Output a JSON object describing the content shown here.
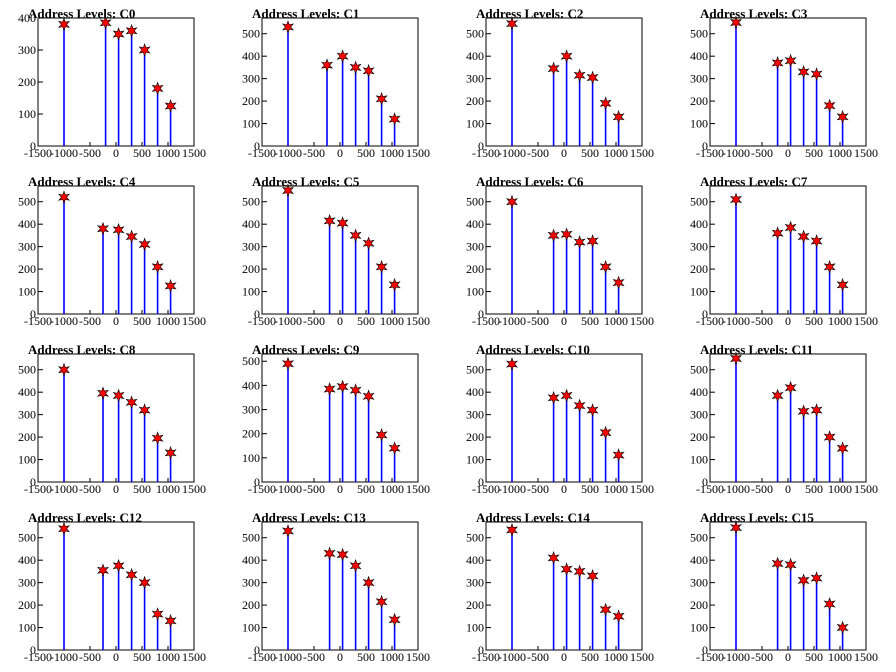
{
  "chart_data": [
    {
      "title": "Address Levels: C0",
      "type": "bar",
      "ylim": [
        0,
        400
      ],
      "yticks": [
        0,
        100,
        200,
        300,
        400
      ],
      "xlim": [
        -1500,
        1500
      ],
      "xticks": [
        -1500,
        -1000,
        -500,
        0,
        500,
        1000,
        1500
      ],
      "peaks": [
        {
          "x": -1000,
          "y": 380
        },
        {
          "x": -200,
          "y": 385
        },
        {
          "x": 50,
          "y": 350
        },
        {
          "x": 300,
          "y": 360
        },
        {
          "x": 550,
          "y": 300
        },
        {
          "x": 800,
          "y": 180
        },
        {
          "x": 1050,
          "y": 125
        }
      ]
    },
    {
      "title": "Address Levels: C1",
      "type": "bar",
      "ylim": [
        0,
        570
      ],
      "yticks": [
        0,
        100,
        200,
        300,
        400,
        500
      ],
      "xlim": [
        -1500,
        1500
      ],
      "xticks": [
        -1500,
        -1000,
        -500,
        0,
        500,
        1000,
        1500
      ],
      "peaks": [
        {
          "x": -1000,
          "y": 530
        },
        {
          "x": -250,
          "y": 360
        },
        {
          "x": 50,
          "y": 400
        },
        {
          "x": 300,
          "y": 350
        },
        {
          "x": 550,
          "y": 335
        },
        {
          "x": 800,
          "y": 210
        },
        {
          "x": 1050,
          "y": 120
        }
      ]
    },
    {
      "title": "Address Levels: C2",
      "type": "bar",
      "ylim": [
        0,
        570
      ],
      "yticks": [
        0,
        100,
        200,
        300,
        400,
        500
      ],
      "xlim": [
        -1500,
        1500
      ],
      "xticks": [
        -1500,
        -1000,
        -500,
        0,
        500,
        1000,
        1500
      ],
      "peaks": [
        {
          "x": -1000,
          "y": 545
        },
        {
          "x": -200,
          "y": 345
        },
        {
          "x": 50,
          "y": 400
        },
        {
          "x": 300,
          "y": 315
        },
        {
          "x": 550,
          "y": 305
        },
        {
          "x": 800,
          "y": 190
        },
        {
          "x": 1050,
          "y": 130
        }
      ]
    },
    {
      "title": "Address Levels: C3",
      "type": "bar",
      "ylim": [
        0,
        570
      ],
      "yticks": [
        0,
        100,
        200,
        300,
        400,
        500
      ],
      "xlim": [
        -1500,
        1500
      ],
      "xticks": [
        -1500,
        -1000,
        -500,
        0,
        500,
        1000,
        1500
      ],
      "peaks": [
        {
          "x": -1000,
          "y": 550
        },
        {
          "x": -200,
          "y": 370
        },
        {
          "x": 50,
          "y": 380
        },
        {
          "x": 300,
          "y": 330
        },
        {
          "x": 550,
          "y": 320
        },
        {
          "x": 800,
          "y": 180
        },
        {
          "x": 1050,
          "y": 130
        }
      ]
    },
    {
      "title": "Address Levels: C4",
      "type": "bar",
      "ylim": [
        0,
        570
      ],
      "yticks": [
        0,
        100,
        200,
        300,
        400,
        500
      ],
      "xlim": [
        -1500,
        1500
      ],
      "xticks": [
        -1500,
        -1000,
        -500,
        0,
        500,
        1000,
        1500
      ],
      "peaks": [
        {
          "x": -1000,
          "y": 520
        },
        {
          "x": -250,
          "y": 380
        },
        {
          "x": 50,
          "y": 375
        },
        {
          "x": 300,
          "y": 345
        },
        {
          "x": 550,
          "y": 310
        },
        {
          "x": 800,
          "y": 210
        },
        {
          "x": 1050,
          "y": 125
        }
      ]
    },
    {
      "title": "Address Levels: C5",
      "type": "bar",
      "ylim": [
        0,
        570
      ],
      "yticks": [
        0,
        100,
        200,
        300,
        400,
        500
      ],
      "xlim": [
        -1500,
        1500
      ],
      "xticks": [
        -1500,
        -1000,
        -500,
        0,
        500,
        1000,
        1500
      ],
      "peaks": [
        {
          "x": -1000,
          "y": 550
        },
        {
          "x": -200,
          "y": 415
        },
        {
          "x": 50,
          "y": 405
        },
        {
          "x": 300,
          "y": 350
        },
        {
          "x": 550,
          "y": 315
        },
        {
          "x": 800,
          "y": 210
        },
        {
          "x": 1050,
          "y": 130
        }
      ]
    },
    {
      "title": "Address Levels: C6",
      "type": "bar",
      "ylim": [
        0,
        570
      ],
      "yticks": [
        0,
        100,
        200,
        300,
        400,
        500
      ],
      "xlim": [
        -1500,
        1500
      ],
      "xticks": [
        -1500,
        -1000,
        -500,
        0,
        500,
        1000,
        1500
      ],
      "peaks": [
        {
          "x": -1000,
          "y": 500
        },
        {
          "x": -200,
          "y": 350
        },
        {
          "x": 50,
          "y": 355
        },
        {
          "x": 300,
          "y": 320
        },
        {
          "x": 550,
          "y": 325
        },
        {
          "x": 800,
          "y": 210
        },
        {
          "x": 1050,
          "y": 140
        }
      ]
    },
    {
      "title": "Address Levels: C7",
      "type": "bar",
      "ylim": [
        0,
        570
      ],
      "yticks": [
        0,
        100,
        200,
        300,
        400,
        500
      ],
      "xlim": [
        -1500,
        1500
      ],
      "xticks": [
        -1500,
        -1000,
        -500,
        0,
        500,
        1000,
        1500
      ],
      "peaks": [
        {
          "x": -1000,
          "y": 510
        },
        {
          "x": -200,
          "y": 360
        },
        {
          "x": 50,
          "y": 385
        },
        {
          "x": 300,
          "y": 345
        },
        {
          "x": 550,
          "y": 325
        },
        {
          "x": 800,
          "y": 210
        },
        {
          "x": 1050,
          "y": 130
        }
      ]
    },
    {
      "title": "Address Levels: C8",
      "type": "bar",
      "ylim": [
        0,
        570
      ],
      "yticks": [
        0,
        100,
        200,
        300,
        400,
        500
      ],
      "xlim": [
        -1500,
        1500
      ],
      "xticks": [
        -1500,
        -1000,
        -500,
        0,
        500,
        1000,
        1500
      ],
      "peaks": [
        {
          "x": -1000,
          "y": 500
        },
        {
          "x": -250,
          "y": 395
        },
        {
          "x": 50,
          "y": 385
        },
        {
          "x": 300,
          "y": 355
        },
        {
          "x": 550,
          "y": 320
        },
        {
          "x": 800,
          "y": 195
        },
        {
          "x": 1050,
          "y": 130
        }
      ]
    },
    {
      "title": "Address Levels: C9",
      "type": "bar",
      "ylim": [
        0,
        530
      ],
      "yticks": [
        0,
        100,
        200,
        300,
        400,
        500
      ],
      "xlim": [
        -1500,
        1500
      ],
      "xticks": [
        -1500,
        -1000,
        -500,
        0,
        500,
        1000,
        1500
      ],
      "peaks": [
        {
          "x": -1000,
          "y": 490
        },
        {
          "x": -200,
          "y": 385
        },
        {
          "x": 50,
          "y": 395
        },
        {
          "x": 300,
          "y": 380
        },
        {
          "x": 550,
          "y": 355
        },
        {
          "x": 800,
          "y": 195
        },
        {
          "x": 1050,
          "y": 140
        }
      ]
    },
    {
      "title": "Address Levels: C10",
      "type": "bar",
      "ylim": [
        0,
        570
      ],
      "yticks": [
        0,
        100,
        200,
        300,
        400,
        500
      ],
      "xlim": [
        -1500,
        1500
      ],
      "xticks": [
        -1500,
        -1000,
        -500,
        0,
        500,
        1000,
        1500
      ],
      "peaks": [
        {
          "x": -1000,
          "y": 525
        },
        {
          "x": -200,
          "y": 375
        },
        {
          "x": 50,
          "y": 385
        },
        {
          "x": 300,
          "y": 340
        },
        {
          "x": 550,
          "y": 320
        },
        {
          "x": 800,
          "y": 220
        },
        {
          "x": 1050,
          "y": 120
        }
      ]
    },
    {
      "title": "Address Levels: C11",
      "type": "bar",
      "ylim": [
        0,
        570
      ],
      "yticks": [
        0,
        100,
        200,
        300,
        400,
        500
      ],
      "xlim": [
        -1500,
        1500
      ],
      "xticks": [
        -1500,
        -1000,
        -500,
        0,
        500,
        1000,
        1500
      ],
      "peaks": [
        {
          "x": -1000,
          "y": 550
        },
        {
          "x": -200,
          "y": 385
        },
        {
          "x": 50,
          "y": 420
        },
        {
          "x": 300,
          "y": 315
        },
        {
          "x": 550,
          "y": 320
        },
        {
          "x": 800,
          "y": 200
        },
        {
          "x": 1050,
          "y": 150
        }
      ]
    },
    {
      "title": "Address Levels: C12",
      "type": "bar",
      "ylim": [
        0,
        570
      ],
      "yticks": [
        0,
        100,
        200,
        300,
        400,
        500
      ],
      "xlim": [
        -1500,
        1500
      ],
      "xticks": [
        -1500,
        -1000,
        -500,
        0,
        500,
        1000,
        1500
      ],
      "peaks": [
        {
          "x": -1000,
          "y": 540
        },
        {
          "x": -250,
          "y": 355
        },
        {
          "x": 50,
          "y": 375
        },
        {
          "x": 300,
          "y": 335
        },
        {
          "x": 550,
          "y": 300
        },
        {
          "x": 800,
          "y": 160
        },
        {
          "x": 1050,
          "y": 130
        }
      ]
    },
    {
      "title": "Address Levels: C13",
      "type": "bar",
      "ylim": [
        0,
        570
      ],
      "yticks": [
        0,
        100,
        200,
        300,
        400,
        500
      ],
      "xlim": [
        -1500,
        1500
      ],
      "xticks": [
        -1500,
        -1000,
        -500,
        0,
        500,
        1000,
        1500
      ],
      "peaks": [
        {
          "x": -1000,
          "y": 530
        },
        {
          "x": -200,
          "y": 430
        },
        {
          "x": 50,
          "y": 425
        },
        {
          "x": 300,
          "y": 375
        },
        {
          "x": 550,
          "y": 300
        },
        {
          "x": 800,
          "y": 215
        },
        {
          "x": 1050,
          "y": 135
        }
      ]
    },
    {
      "title": "Address Levels: C14",
      "type": "bar",
      "ylim": [
        0,
        570
      ],
      "yticks": [
        0,
        100,
        200,
        300,
        400,
        500
      ],
      "xlim": [
        -1500,
        1500
      ],
      "xticks": [
        -1500,
        -1000,
        -500,
        0,
        500,
        1000,
        1500
      ],
      "peaks": [
        {
          "x": -1000,
          "y": 535
        },
        {
          "x": -200,
          "y": 410
        },
        {
          "x": 50,
          "y": 360
        },
        {
          "x": 300,
          "y": 350
        },
        {
          "x": 550,
          "y": 330
        },
        {
          "x": 800,
          "y": 180
        },
        {
          "x": 1050,
          "y": 150
        }
      ]
    },
    {
      "title": "Address Levels: C15",
      "type": "bar",
      "ylim": [
        0,
        570
      ],
      "yticks": [
        0,
        100,
        200,
        300,
        400,
        500
      ],
      "xlim": [
        -1500,
        1500
      ],
      "xticks": [
        -1500,
        -1000,
        -500,
        0,
        500,
        1000,
        1500
      ],
      "peaks": [
        {
          "x": -1000,
          "y": 545
        },
        {
          "x": -200,
          "y": 385
        },
        {
          "x": 50,
          "y": 380
        },
        {
          "x": 300,
          "y": 310
        },
        {
          "x": 550,
          "y": 320
        },
        {
          "x": 800,
          "y": 205
        },
        {
          "x": 1050,
          "y": 100
        }
      ]
    }
  ],
  "colors": {
    "bar": "#0000ff",
    "marker_fill": "#ff0000",
    "marker_stroke": "#000000",
    "axis": "#000000"
  }
}
